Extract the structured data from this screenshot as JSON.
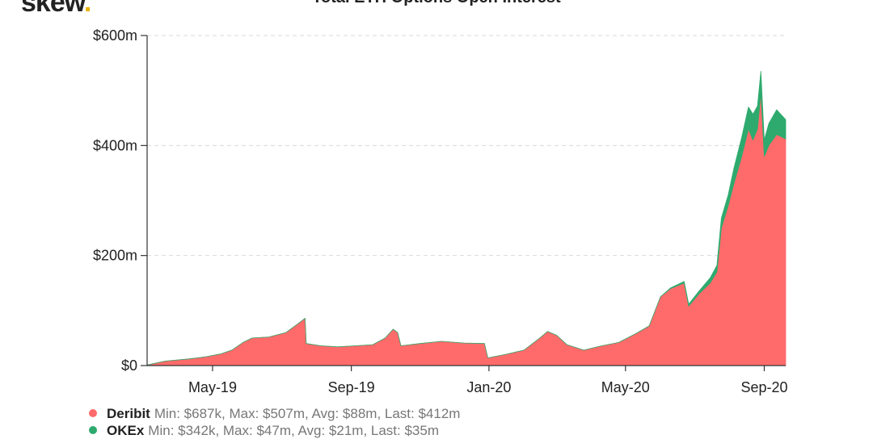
{
  "logo": {
    "text": "skew",
    "dot": "."
  },
  "chart_data": {
    "type": "area",
    "stacked": true,
    "title": "Total ETH Options Open Interest",
    "ylim": [
      0,
      600
    ],
    "y_unit": "$m",
    "yticks": [
      {
        "value": 0,
        "label": "$0"
      },
      {
        "value": 200,
        "label": "$200m"
      },
      {
        "value": 400,
        "label": "$400m"
      },
      {
        "value": 600,
        "label": "$600m"
      }
    ],
    "xlim": [
      "2019-03-04",
      "2020-09-20"
    ],
    "xticks": [
      {
        "date": "2019-05-01",
        "label": "May-19"
      },
      {
        "date": "2019-09-01",
        "label": "Sep-19"
      },
      {
        "date": "2020-01-01",
        "label": "Jan-20"
      },
      {
        "date": "2020-05-01",
        "label": "May-20"
      },
      {
        "date": "2020-09-01",
        "label": "Sep-20"
      }
    ],
    "grid": true,
    "legend_position": "bottom-left",
    "series": [
      {
        "name": "Deribit",
        "color": "#ff6b6b",
        "stats": "Min: $687k, Max: $507m, Avg: $88m, Last: $412m",
        "points": [
          [
            "2019-03-04",
            1
          ],
          [
            "2019-03-20",
            8
          ],
          [
            "2019-04-10",
            12
          ],
          [
            "2019-04-25",
            16
          ],
          [
            "2019-05-08",
            21
          ],
          [
            "2019-05-18",
            28
          ],
          [
            "2019-05-28",
            42
          ],
          [
            "2019-06-05",
            50
          ],
          [
            "2019-06-20",
            52
          ],
          [
            "2019-07-05",
            60
          ],
          [
            "2019-07-15",
            75
          ],
          [
            "2019-07-22",
            86
          ],
          [
            "2019-07-23",
            40
          ],
          [
            "2019-08-05",
            36
          ],
          [
            "2019-08-20",
            34
          ],
          [
            "2019-09-05",
            36
          ],
          [
            "2019-09-20",
            38
          ],
          [
            "2019-10-01",
            50
          ],
          [
            "2019-10-08",
            66
          ],
          [
            "2019-10-12",
            60
          ],
          [
            "2019-10-15",
            36
          ],
          [
            "2019-11-01",
            40
          ],
          [
            "2019-11-20",
            44
          ],
          [
            "2019-12-10",
            41
          ],
          [
            "2019-12-28",
            40
          ],
          [
            "2019-12-31",
            14
          ],
          [
            "2020-01-15",
            20
          ],
          [
            "2020-02-01",
            28
          ],
          [
            "2020-02-15",
            50
          ],
          [
            "2020-02-22",
            62
          ],
          [
            "2020-03-01",
            55
          ],
          [
            "2020-03-10",
            38
          ],
          [
            "2020-03-25",
            28
          ],
          [
            "2020-04-10",
            36
          ],
          [
            "2020-04-25",
            42
          ],
          [
            "2020-05-10",
            58
          ],
          [
            "2020-05-22",
            72
          ],
          [
            "2020-06-01",
            125
          ],
          [
            "2020-06-10",
            140
          ],
          [
            "2020-06-22",
            150
          ],
          [
            "2020-06-26",
            108
          ],
          [
            "2020-07-05",
            130
          ],
          [
            "2020-07-15",
            150
          ],
          [
            "2020-07-21",
            170
          ],
          [
            "2020-07-25",
            250
          ],
          [
            "2020-07-31",
            290
          ],
          [
            "2020-08-05",
            330
          ],
          [
            "2020-08-12",
            380
          ],
          [
            "2020-08-18",
            430
          ],
          [
            "2020-08-22",
            410
          ],
          [
            "2020-08-26",
            430
          ],
          [
            "2020-08-29",
            495
          ],
          [
            "2020-09-01",
            380
          ],
          [
            "2020-09-05",
            400
          ],
          [
            "2020-09-12",
            420
          ],
          [
            "2020-09-20",
            412
          ]
        ]
      },
      {
        "name": "OKEx",
        "color": "#2eaa6e",
        "stats": "Min: $342k, Max: $47m, Avg: $21m, Last: $35m",
        "points": [
          [
            "2019-03-04",
            0
          ],
          [
            "2020-06-01",
            0
          ],
          [
            "2020-06-22",
            3
          ],
          [
            "2020-07-05",
            5
          ],
          [
            "2020-07-21",
            12
          ],
          [
            "2020-07-25",
            18
          ],
          [
            "2020-07-31",
            20
          ],
          [
            "2020-08-05",
            28
          ],
          [
            "2020-08-12",
            35
          ],
          [
            "2020-08-18",
            40
          ],
          [
            "2020-08-22",
            47
          ],
          [
            "2020-08-26",
            42
          ],
          [
            "2020-08-29",
            40
          ],
          [
            "2020-09-01",
            30
          ],
          [
            "2020-09-05",
            40
          ],
          [
            "2020-09-12",
            45
          ],
          [
            "2020-09-20",
            35
          ]
        ]
      }
    ]
  }
}
